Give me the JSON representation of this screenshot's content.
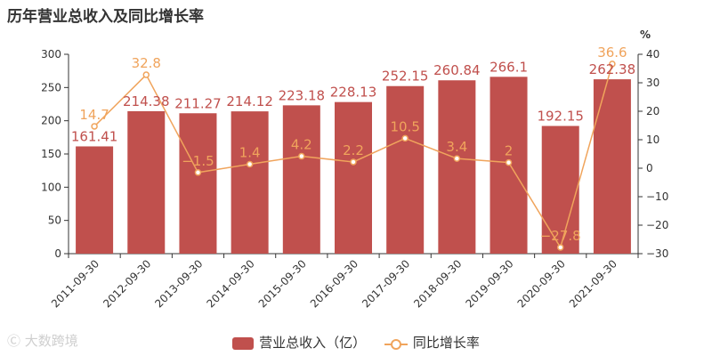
{
  "chart_data": {
    "type": "bar",
    "title": "历年营业总收入及同比增长率",
    "categories": [
      "2011-09-30",
      "2012-09-30",
      "2013-09-30",
      "2014-09-30",
      "2015-09-30",
      "2016-09-30",
      "2017-09-30",
      "2018-09-30",
      "2019-09-30",
      "2020-09-30",
      "2021-09-30"
    ],
    "series": [
      {
        "name": "营业总收入（亿）",
        "type": "bar",
        "axis": "left",
        "color": "#c0504d",
        "values": [
          161.41,
          214.38,
          211.27,
          214.12,
          223.18,
          228.13,
          252.15,
          260.84,
          266.1,
          192.15,
          262.38
        ]
      },
      {
        "name": "同比增长率",
        "type": "line",
        "axis": "right",
        "color": "#f0a45c",
        "values": [
          14.7,
          32.8,
          -1.5,
          1.4,
          4.2,
          2.2,
          10.5,
          3.4,
          2,
          -27.8,
          36.6
        ]
      }
    ],
    "y_left": {
      "min": 0,
      "max": 300,
      "ticks": [
        0,
        50,
        100,
        150,
        200,
        250,
        300
      ]
    },
    "y_right": {
      "min": -30,
      "max": 40,
      "unit": "%",
      "ticks": [
        -30,
        -20,
        -10,
        0,
        10,
        20,
        30,
        40
      ]
    },
    "grid": false,
    "legend_position": "bottom"
  },
  "watermark": "大数跨境"
}
